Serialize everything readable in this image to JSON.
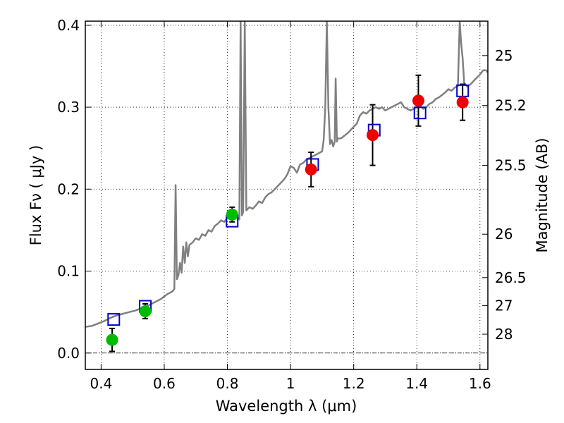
{
  "chart_data": {
    "type": "scatter",
    "xlabel": "Wavelength  λ (μm)",
    "ylabel": "Flux  Fν  ( μJy )",
    "y2label": "Magnitude (AB)",
    "xlim": [
      0.35,
      1.625
    ],
    "ylim": [
      -0.02,
      0.405
    ],
    "x_ticks": [
      0.4,
      0.6,
      0.8,
      1.0,
      1.2,
      1.4,
      1.6
    ],
    "x_tick_labels": [
      "0.4",
      "0.6",
      "0.8",
      "1",
      "1.2",
      "1.4",
      "1.6"
    ],
    "y_ticks": [
      0.0,
      0.1,
      0.2,
      0.3,
      0.4
    ],
    "y_tick_labels": [
      "0.0",
      "0.1",
      "0.2",
      "0.3",
      "0.4"
    ],
    "mag_ticks": [
      {
        "label": "25",
        "flux": 0.363
      },
      {
        "label": "25.2",
        "flux": 0.302
      },
      {
        "label": "25.5",
        "flux": 0.229
      },
      {
        "label": "26",
        "flux": 0.145
      },
      {
        "label": "26.5",
        "flux": 0.092
      },
      {
        "label": "27",
        "flux": 0.058
      },
      {
        "label": "28",
        "flux": 0.023
      }
    ],
    "grid": true,
    "colors": {
      "model": "#808080",
      "model_points": "#0000cc",
      "optical": "#00bb00",
      "nir": "#ee0000",
      "errorbar": "#000000"
    },
    "model_spectrum": [
      [
        0.35,
        0.032
      ],
      [
        0.37,
        0.033
      ],
      [
        0.39,
        0.036
      ],
      [
        0.41,
        0.039
      ],
      [
        0.43,
        0.043
      ],
      [
        0.45,
        0.046
      ],
      [
        0.47,
        0.048
      ],
      [
        0.49,
        0.05
      ],
      [
        0.51,
        0.052
      ],
      [
        0.53,
        0.055
      ],
      [
        0.55,
        0.058
      ],
      [
        0.57,
        0.062
      ],
      [
        0.59,
        0.066
      ],
      [
        0.61,
        0.072
      ],
      [
        0.625,
        0.075
      ],
      [
        0.632,
        0.078
      ],
      [
        0.636,
        0.205
      ],
      [
        0.64,
        0.09
      ],
      [
        0.645,
        0.095
      ],
      [
        0.65,
        0.11
      ],
      [
        0.655,
        0.098
      ],
      [
        0.66,
        0.13
      ],
      [
        0.665,
        0.11
      ],
      [
        0.67,
        0.135
      ],
      [
        0.675,
        0.118
      ],
      [
        0.68,
        0.132
      ],
      [
        0.69,
        0.135
      ],
      [
        0.7,
        0.14
      ],
      [
        0.71,
        0.138
      ],
      [
        0.72,
        0.145
      ],
      [
        0.73,
        0.143
      ],
      [
        0.74,
        0.15
      ],
      [
        0.75,
        0.148
      ],
      [
        0.76,
        0.155
      ],
      [
        0.77,
        0.158
      ],
      [
        0.78,
        0.162
      ],
      [
        0.79,
        0.16
      ],
      [
        0.8,
        0.165
      ],
      [
        0.81,
        0.168
      ],
      [
        0.82,
        0.17
      ],
      [
        0.83,
        0.166
      ],
      [
        0.838,
        0.163
      ],
      [
        0.842,
        0.405
      ],
      [
        0.846,
        0.168
      ],
      [
        0.85,
        0.172
      ],
      [
        0.855,
        0.405
      ],
      [
        0.86,
        0.174
      ],
      [
        0.87,
        0.178
      ],
      [
        0.88,
        0.176
      ],
      [
        0.89,
        0.18
      ],
      [
        0.9,
        0.185
      ],
      [
        0.91,
        0.183
      ],
      [
        0.92,
        0.19
      ],
      [
        0.93,
        0.194
      ],
      [
        0.94,
        0.196
      ],
      [
        0.95,
        0.2
      ],
      [
        0.96,
        0.204
      ],
      [
        0.97,
        0.208
      ],
      [
        0.98,
        0.212
      ],
      [
        0.99,
        0.218
      ],
      [
        1.0,
        0.228
      ],
      [
        1.01,
        0.226
      ],
      [
        1.02,
        0.22
      ],
      [
        1.03,
        0.23
      ],
      [
        1.04,
        0.232
      ],
      [
        1.05,
        0.236
      ],
      [
        1.06,
        0.238
      ],
      [
        1.07,
        0.24
      ],
      [
        1.08,
        0.242
      ],
      [
        1.09,
        0.244
      ],
      [
        1.1,
        0.246
      ],
      [
        1.105,
        0.26
      ],
      [
        1.11,
        0.3
      ],
      [
        1.115,
        0.405
      ],
      [
        1.12,
        0.3
      ],
      [
        1.125,
        0.255
      ],
      [
        1.13,
        0.26
      ],
      [
        1.135,
        0.252
      ],
      [
        1.14,
        0.258
      ],
      [
        1.143,
        0.335
      ],
      [
        1.147,
        0.258
      ],
      [
        1.15,
        0.262
      ],
      [
        1.16,
        0.262
      ],
      [
        1.17,
        0.265
      ],
      [
        1.18,
        0.268
      ],
      [
        1.19,
        0.272
      ],
      [
        1.2,
        0.276
      ],
      [
        1.21,
        0.28
      ],
      [
        1.22,
        0.29
      ],
      [
        1.23,
        0.294
      ],
      [
        1.24,
        0.292
      ],
      [
        1.25,
        0.296
      ],
      [
        1.26,
        0.298
      ],
      [
        1.27,
        0.3
      ],
      [
        1.28,
        0.298
      ],
      [
        1.29,
        0.3
      ],
      [
        1.3,
        0.296
      ],
      [
        1.31,
        0.298
      ],
      [
        1.32,
        0.3
      ],
      [
        1.33,
        0.302
      ],
      [
        1.34,
        0.304
      ],
      [
        1.35,
        0.306
      ],
      [
        1.36,
        0.3
      ],
      [
        1.37,
        0.298
      ],
      [
        1.38,
        0.296
      ],
      [
        1.39,
        0.298
      ],
      [
        1.4,
        0.3
      ],
      [
        1.41,
        0.302
      ],
      [
        1.42,
        0.298
      ],
      [
        1.43,
        0.3
      ],
      [
        1.44,
        0.304
      ],
      [
        1.45,
        0.306
      ],
      [
        1.46,
        0.31
      ],
      [
        1.47,
        0.312
      ],
      [
        1.48,
        0.315
      ],
      [
        1.49,
        0.318
      ],
      [
        1.5,
        0.322
      ],
      [
        1.51,
        0.32
      ],
      [
        1.52,
        0.324
      ],
      [
        1.53,
        0.326
      ],
      [
        1.536,
        0.405
      ],
      [
        1.54,
        0.38
      ],
      [
        1.545,
        0.36
      ],
      [
        1.55,
        0.33
      ],
      [
        1.56,
        0.325
      ],
      [
        1.57,
        0.328
      ],
      [
        1.58,
        0.332
      ],
      [
        1.59,
        0.336
      ],
      [
        1.6,
        0.34
      ],
      [
        1.61,
        0.345
      ],
      [
        1.62,
        0.345
      ],
      [
        1.625,
        0.342
      ]
    ],
    "model_points": [
      {
        "x": 0.44,
        "y": 0.041
      },
      {
        "x": 0.54,
        "y": 0.057
      },
      {
        "x": 0.815,
        "y": 0.161
      },
      {
        "x": 1.07,
        "y": 0.23
      },
      {
        "x": 1.265,
        "y": 0.272
      },
      {
        "x": 1.41,
        "y": 0.293
      },
      {
        "x": 1.545,
        "y": 0.32
      }
    ],
    "observed_optical": [
      {
        "x": 0.435,
        "y": 0.016,
        "err": 0.014
      },
      {
        "x": 0.54,
        "y": 0.051,
        "err": 0.009
      },
      {
        "x": 0.815,
        "y": 0.169,
        "err": 0.009
      }
    ],
    "observed_nir": [
      {
        "x": 1.065,
        "y": 0.224,
        "err": 0.021
      },
      {
        "x": 1.26,
        "y": 0.266,
        "err": 0.037
      },
      {
        "x": 1.405,
        "y": 0.308,
        "err": 0.031
      },
      {
        "x": 1.545,
        "y": 0.306,
        "err": 0.022
      }
    ]
  }
}
